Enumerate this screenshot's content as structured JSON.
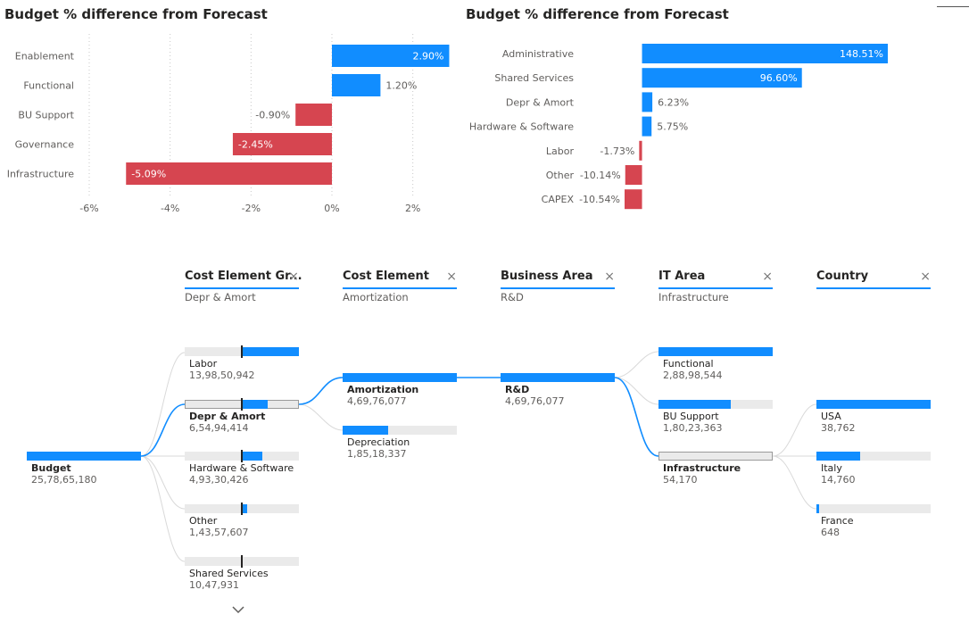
{
  "left_chart": {
    "title": "Budget % difference from Forecast",
    "chart_data": {
      "type": "bar",
      "orientation": "horizontal",
      "title": "Budget % difference from Forecast",
      "categories": [
        "Enablement",
        "Functional",
        "BU Support",
        "Governance",
        "Infrastructure"
      ],
      "values": [
        2.9,
        1.2,
        -0.9,
        -2.45,
        -5.09
      ],
      "value_labels": [
        "2.90%",
        "1.20%",
        "-0.90%",
        "-2.45%",
        "-5.09%"
      ],
      "xlim": [
        -6,
        3
      ],
      "ticks": [
        -6,
        -4,
        -2,
        0,
        2
      ],
      "tick_labels": [
        "-6%",
        "-4%",
        "-2%",
        "0%",
        "2%"
      ],
      "grid": true,
      "colors": {
        "positive": "#118dff",
        "negative": "#d64550"
      }
    }
  },
  "right_chart": {
    "title": "Budget % difference from Forecast",
    "chart_data": {
      "type": "bar",
      "orientation": "horizontal",
      "title": "Budget % difference from Forecast",
      "categories": [
        "Administrative",
        "Shared Services",
        "Depr & Amort",
        "Hardware & Software",
        "Labor",
        "Other",
        "CAPEX"
      ],
      "values": [
        148.51,
        96.6,
        6.23,
        5.75,
        -1.73,
        -10.14,
        -10.54
      ],
      "value_labels": [
        "148.51%",
        "96.60%",
        "6.23%",
        "5.75%",
        "-1.73%",
        "-10.14%",
        "-10.54%"
      ],
      "xlim": [
        -10.54,
        148.51
      ],
      "grid": false,
      "colors": {
        "positive": "#118dff",
        "negative": "#d64550"
      }
    }
  },
  "decomposition_tree": {
    "columns": [
      {
        "title": "Cost Element Gr...",
        "selected": "Depr & Amort",
        "close": "×"
      },
      {
        "title": "Cost Element",
        "selected": "Amortization",
        "close": "×"
      },
      {
        "title": "Business Area",
        "selected": "R&D",
        "close": "×"
      },
      {
        "title": "IT Area",
        "selected": "Infrastructure",
        "close": "×"
      },
      {
        "title": "Country",
        "selected": "",
        "close": "×"
      }
    ],
    "root": {
      "label": "Budget",
      "value": "25,78,65,180",
      "fill": 1.0
    },
    "cost_element_groups": [
      {
        "label": "Labor",
        "value": "13,98,50,942",
        "fill_from": 0.5,
        "fill_to": 1.0,
        "selected": false
      },
      {
        "label": "Depr & Amort",
        "value": "6,54,94,414",
        "fill_from": 0.5,
        "fill_to": 0.73,
        "selected": true
      },
      {
        "label": "Hardware & Software",
        "value": "4,93,30,426",
        "fill_from": 0.5,
        "fill_to": 0.68,
        "selected": false
      },
      {
        "label": "Other",
        "value": "1,43,57,607",
        "fill_from": 0.5,
        "fill_to": 0.55,
        "selected": false
      },
      {
        "label": "Shared Services",
        "value": "10,47,931",
        "fill_from": 0.5,
        "fill_to": 0.5,
        "selected": false
      }
    ],
    "cost_elements": [
      {
        "label": "Amortization",
        "value": "4,69,76,077",
        "fill": 1.0,
        "selected": true
      },
      {
        "label": "Depreciation",
        "value": "1,85,18,337",
        "fill": 0.395,
        "selected": false
      }
    ],
    "business_areas": [
      {
        "label": "R&D",
        "value": "4,69,76,077",
        "fill": 1.0,
        "selected": true
      }
    ],
    "it_areas": [
      {
        "label": "Functional",
        "value": "2,88,98,544",
        "fill": 1.0,
        "selected": false
      },
      {
        "label": "BU Support",
        "value": "1,80,23,363",
        "fill": 0.63,
        "selected": false
      },
      {
        "label": "Infrastructure",
        "value": "54,170",
        "fill": 0.0,
        "selected": true
      }
    ],
    "countries": [
      {
        "label": "USA",
        "value": "38,762",
        "fill": 1.0,
        "selected": false
      },
      {
        "label": "Italy",
        "value": "14,760",
        "fill": 0.38,
        "selected": false
      },
      {
        "label": "France",
        "value": "648",
        "fill": 0.02,
        "selected": false
      }
    ],
    "more_icon": "chevron-down-icon",
    "accent_color": "#118dff"
  }
}
